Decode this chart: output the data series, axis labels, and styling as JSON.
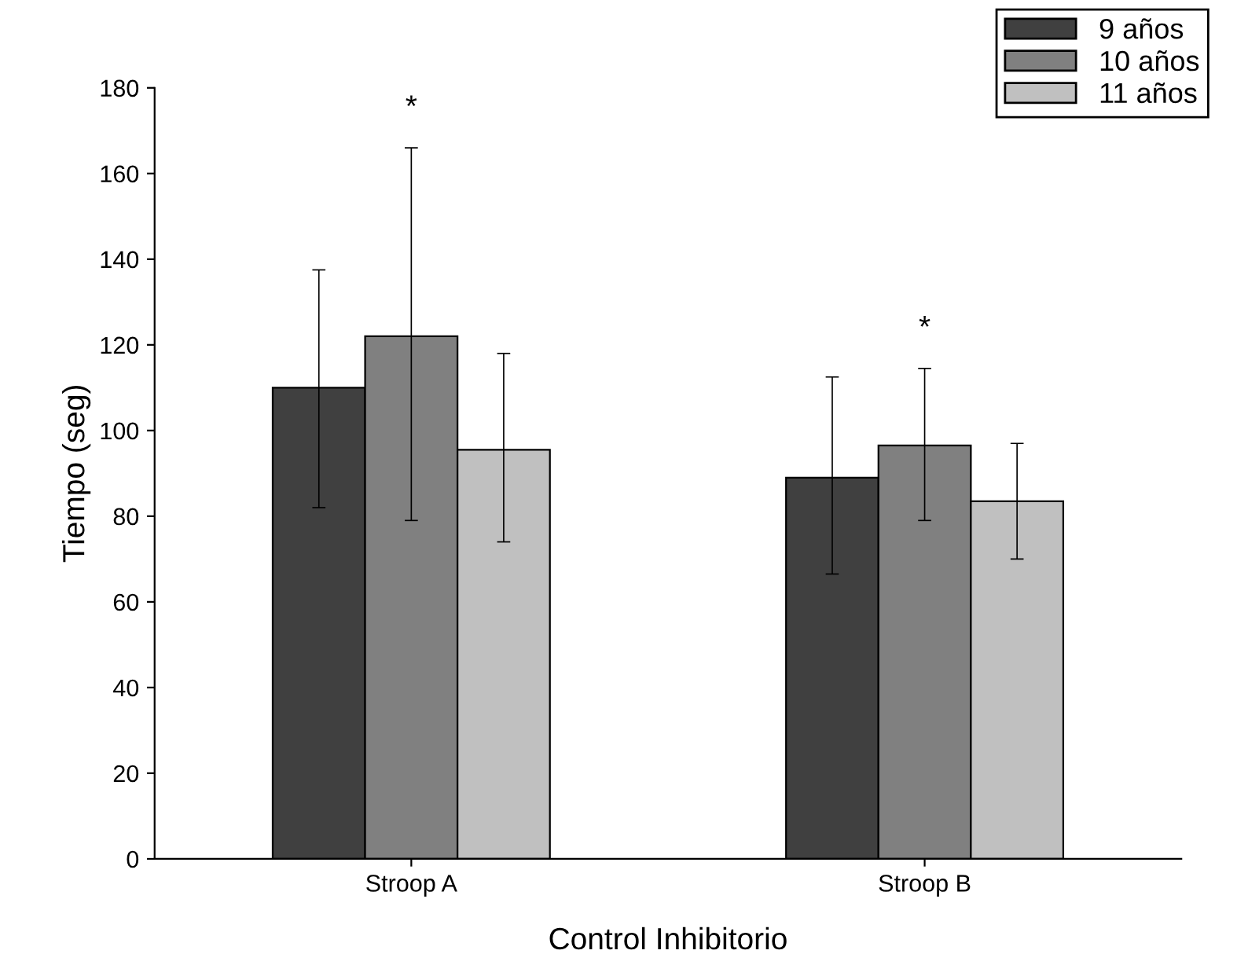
{
  "chart_data": {
    "type": "bar",
    "xlabel": "Control Inhibitorio",
    "ylabel": "Tiempo (seg)",
    "categories": [
      "Stroop A",
      "Stroop B"
    ],
    "series": [
      {
        "name": "9 años",
        "color": "#404040",
        "values": [
          110,
          89
        ],
        "errors": [
          [
            82,
            137.5
          ],
          [
            66.5,
            112.5
          ]
        ]
      },
      {
        "name": "10 años",
        "color": "#808080",
        "values": [
          122,
          96.5
        ],
        "errors": [
          [
            79,
            166
          ],
          [
            79,
            114.5
          ]
        ]
      },
      {
        "name": "11 años",
        "color": "#c0c0c0",
        "values": [
          95.5,
          83.5
        ],
        "errors": [
          [
            74,
            118
          ],
          [
            70,
            97
          ]
        ]
      }
    ],
    "annotations": [
      "*",
      "*"
    ],
    "ylim": [
      0,
      180
    ],
    "yticks": [
      0,
      20,
      40,
      60,
      80,
      100,
      120,
      140,
      160,
      180
    ],
    "grid": false,
    "legend": "top right"
  }
}
